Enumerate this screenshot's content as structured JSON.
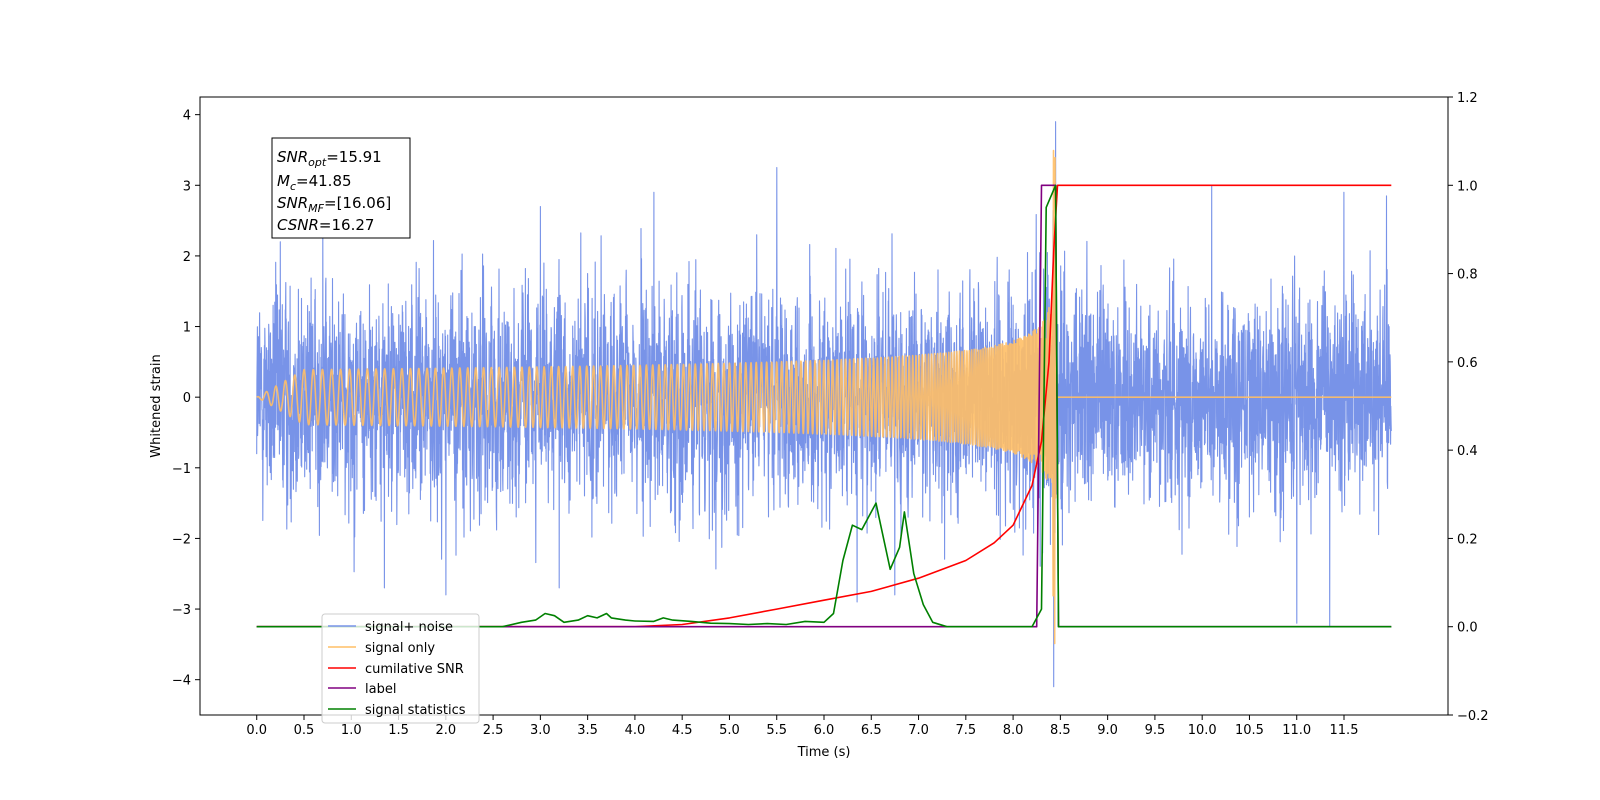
{
  "chart_data": {
    "type": "line",
    "title": "",
    "xlabel": "Time (s)",
    "ylabel": "Whitened strain",
    "xlim": [
      -0.6,
      12.6
    ],
    "ylim": [
      -4.5,
      4.25
    ],
    "y2lim": [
      -0.2,
      1.2
    ],
    "xticks": [
      0.0,
      0.5,
      1.0,
      1.5,
      2.0,
      2.5,
      3.0,
      3.5,
      4.0,
      4.5,
      5.0,
      5.5,
      6.0,
      6.5,
      7.0,
      7.5,
      8.0,
      8.5,
      9.0,
      9.5,
      10.0,
      10.5,
      11.0,
      11.5
    ],
    "xtick_labels": [
      "0.0",
      "0.5",
      "1.0",
      "1.5",
      "2.0",
      "2.5",
      "3.0",
      "3.5",
      "4.0",
      "4.5",
      "5.0",
      "5.5",
      "6.0",
      "6.5",
      "7.0",
      "7.5",
      "8.0",
      "8.5",
      "9.0",
      "9.5",
      "10.0",
      "10.5",
      "11.0",
      "11.5"
    ],
    "yticks": [
      -4,
      -3,
      -2,
      -1,
      0,
      1,
      2,
      3,
      4
    ],
    "ytick_labels": [
      "−4",
      "−3",
      "−2",
      "−1",
      "0",
      "1",
      "2",
      "3",
      "4"
    ],
    "y2ticks": [
      -0.2,
      0.0,
      0.2,
      0.4,
      0.6,
      0.8,
      1.0,
      1.2
    ],
    "y2tick_labels": [
      "−0.2",
      "0.0",
      "0.2",
      "0.4",
      "0.6",
      "0.8",
      "1.0",
      "1.2"
    ],
    "grid": false,
    "legend_position": "lower-left",
    "annotation": {
      "lines": [
        {
          "label": "SNR",
          "sub": "opt",
          "value": "=15.91"
        },
        {
          "label": "M",
          "sub": "c",
          "value": "=41.85"
        },
        {
          "label": "SNR",
          "sub": "MF",
          "value": "=[16.06]"
        },
        {
          "label": "CSNR",
          "sub": "",
          "value": "=16.27"
        }
      ]
    },
    "series": [
      {
        "name": "signal+ noise",
        "color": "#7893e8",
        "axis": "left",
        "kind": "noise",
        "x_range": [
          0.0,
          12.0
        ],
        "std": 0.75,
        "sample_peaks": [
          [
            0.25,
            2.2
          ],
          [
            0.7,
            2.5
          ],
          [
            1.35,
            -2.7
          ],
          [
            2.0,
            -2.8
          ],
          [
            3.0,
            2.7
          ],
          [
            3.2,
            -2.7
          ],
          [
            4.2,
            2.9
          ],
          [
            5.5,
            3.25
          ],
          [
            6.35,
            -2.9
          ],
          [
            6.75,
            -2.8
          ],
          [
            8.45,
            3.9
          ],
          [
            8.43,
            -4.1
          ],
          [
            10.1,
            3.0
          ],
          [
            11.0,
            -3.2
          ],
          [
            11.35,
            -3.25
          ],
          [
            11.5,
            2.9
          ],
          [
            11.95,
            2.85
          ]
        ]
      },
      {
        "name": "signal only",
        "color": "#ffbf66",
        "axis": "left",
        "kind": "chirp",
        "x_range": [
          0.0,
          8.5
        ],
        "merger_time": 8.45,
        "peak_amplitude": 3.5
      },
      {
        "name": "cumilative SNR",
        "color": "#ff0000",
        "axis": "right",
        "points": [
          [
            0.0,
            0.0
          ],
          [
            4.0,
            0.0
          ],
          [
            4.5,
            0.005
          ],
          [
            5.0,
            0.02
          ],
          [
            5.5,
            0.04
          ],
          [
            6.0,
            0.06
          ],
          [
            6.5,
            0.08
          ],
          [
            7.0,
            0.11
          ],
          [
            7.5,
            0.15
          ],
          [
            7.8,
            0.19
          ],
          [
            8.0,
            0.23
          ],
          [
            8.2,
            0.32
          ],
          [
            8.3,
            0.42
          ],
          [
            8.38,
            0.6
          ],
          [
            8.43,
            0.85
          ],
          [
            8.47,
            1.0
          ],
          [
            12.0,
            1.0
          ]
        ]
      },
      {
        "name": "label",
        "color": "#800080",
        "axis": "right",
        "points": [
          [
            0.0,
            0.0
          ],
          [
            8.25,
            0.0
          ],
          [
            8.3,
            1.0
          ],
          [
            8.45,
            1.0
          ],
          [
            8.48,
            0.0
          ],
          [
            12.0,
            0.0
          ]
        ]
      },
      {
        "name": "signal statistics",
        "color": "#008000",
        "axis": "right",
        "points": [
          [
            0.0,
            0.0
          ],
          [
            2.6,
            0.0
          ],
          [
            2.8,
            0.01
          ],
          [
            2.95,
            0.015
          ],
          [
            3.05,
            0.03
          ],
          [
            3.15,
            0.025
          ],
          [
            3.25,
            0.01
          ],
          [
            3.4,
            0.015
          ],
          [
            3.5,
            0.025
          ],
          [
            3.6,
            0.02
          ],
          [
            3.7,
            0.03
          ],
          [
            3.75,
            0.02
          ],
          [
            3.9,
            0.015
          ],
          [
            4.0,
            0.013
          ],
          [
            4.2,
            0.012
          ],
          [
            4.3,
            0.02
          ],
          [
            4.4,
            0.015
          ],
          [
            4.6,
            0.012
          ],
          [
            4.8,
            0.008
          ],
          [
            5.0,
            0.007
          ],
          [
            5.2,
            0.005
          ],
          [
            5.4,
            0.007
          ],
          [
            5.6,
            0.005
          ],
          [
            5.8,
            0.012
          ],
          [
            6.0,
            0.01
          ],
          [
            6.1,
            0.03
          ],
          [
            6.2,
            0.15
          ],
          [
            6.3,
            0.23
          ],
          [
            6.4,
            0.22
          ],
          [
            6.5,
            0.26
          ],
          [
            6.55,
            0.28
          ],
          [
            6.6,
            0.23
          ],
          [
            6.7,
            0.13
          ],
          [
            6.8,
            0.18
          ],
          [
            6.85,
            0.26
          ],
          [
            6.95,
            0.12
          ],
          [
            7.05,
            0.05
          ],
          [
            7.15,
            0.01
          ],
          [
            7.3,
            0.0
          ],
          [
            8.2,
            0.0
          ],
          [
            8.3,
            0.04
          ],
          [
            8.35,
            0.95
          ],
          [
            8.45,
            1.0
          ],
          [
            8.48,
            0.0
          ],
          [
            12.0,
            0.0
          ]
        ]
      }
    ]
  }
}
